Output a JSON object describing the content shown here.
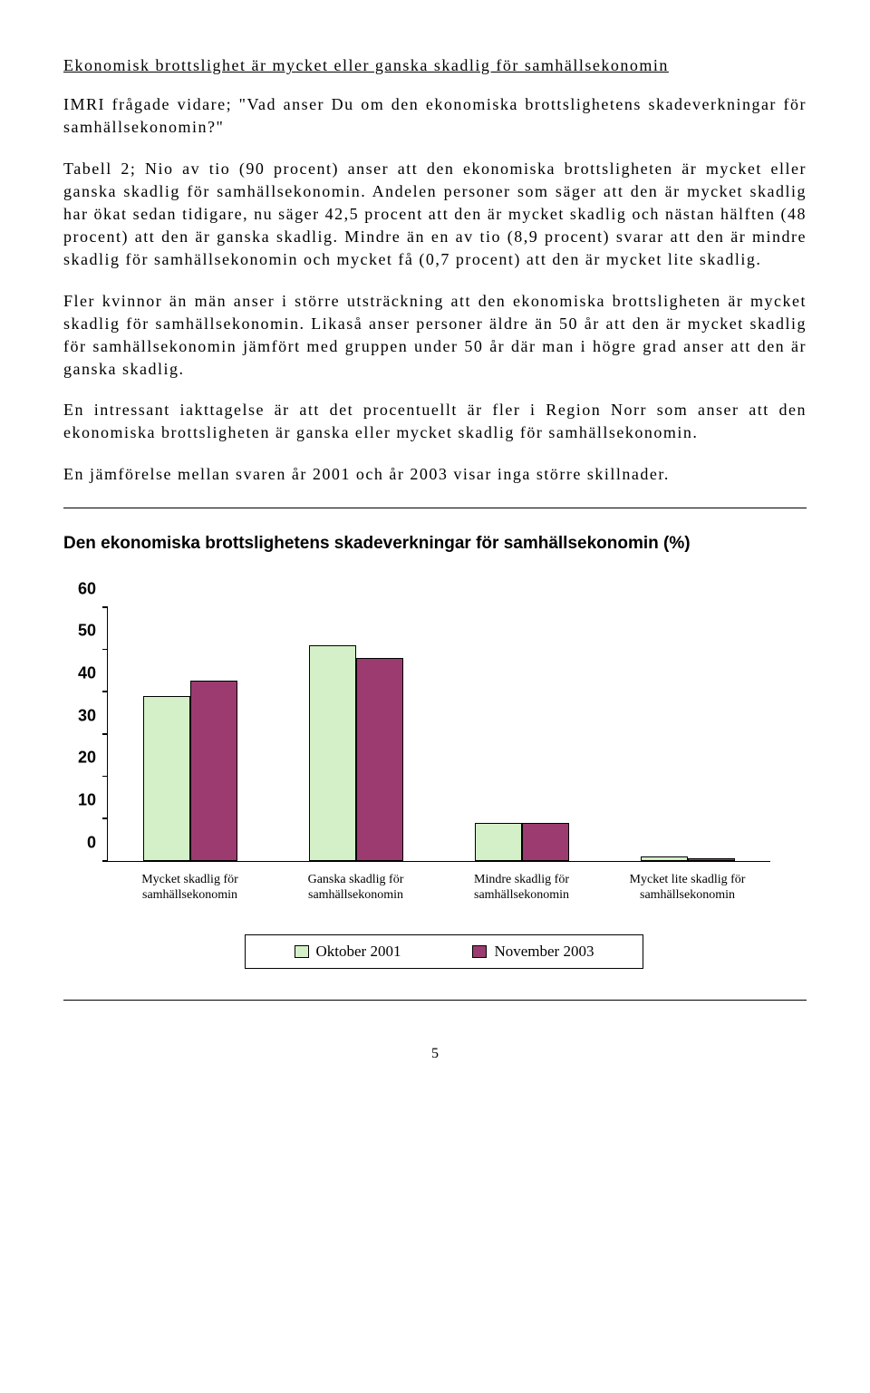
{
  "heading": "Ekonomisk brottslighet är mycket eller ganska skadlig för samhällsekonomin",
  "paras": {
    "p1": "IMRI frågade vidare; \"Vad anser Du om den ekonomiska brottslighetens skadeverkningar för samhällsekonomin?\"",
    "p2": "Tabell 2; Nio av tio (90 procent) anser att den ekonomiska brottsligheten är mycket eller ganska skadlig för samhällsekonomin. Andelen personer som säger att den är mycket skadlig har ökat sedan tidigare, nu säger 42,5 procent att den är mycket skadlig och nästan hälften (48 procent) att den är ganska skadlig. Mindre än en av tio (8,9 procent) svarar att den är mindre skadlig för samhällsekonomin och mycket få (0,7 procent) att den är mycket lite skadlig.",
    "p3": "Fler kvinnor än män anser i större utsträckning att den ekonomiska brottsligheten är mycket skadlig för samhällsekonomin. Likaså anser personer äldre än 50 år att den är mycket skadlig för samhällsekonomin jämfört med gruppen under 50 år där man i högre grad anser att den är ganska skadlig.",
    "p4": "En intressant iakttagelse är att det procentuellt är fler i Region Norr som anser att den ekonomiska brottsligheten är ganska eller mycket skadlig för samhällsekonomin.",
    "p5": "En jämförelse mellan svaren år 2001 och år 2003 visar inga större skillnader."
  },
  "chart": {
    "title": "Den ekonomiska brottslighetens skadeverkningar för samhällsekonomin (%)",
    "type": "bar",
    "ymax": 60,
    "yticks": [
      0,
      10,
      20,
      30,
      40,
      50,
      60
    ],
    "categories": [
      "Mycket skadlig för samhällsekonomin",
      "Ganska skadlig för samhällsekonomin",
      "Mindre skadlig för samhällsekonomin",
      "Mycket lite skadlig för samhällsekonomin"
    ],
    "series": [
      {
        "name": "Oktober 2001",
        "color": "#d4f0c8",
        "values": [
          39,
          51,
          9,
          1
        ]
      },
      {
        "name": "November 2003",
        "color": "#9c3b6f",
        "values": [
          42.5,
          48,
          8.9,
          0.7
        ]
      }
    ],
    "axis_color": "#000000",
    "background": "#ffffff",
    "y_label_fontsize": 18,
    "x_label_fontsize": 14
  },
  "pageNumber": "5"
}
